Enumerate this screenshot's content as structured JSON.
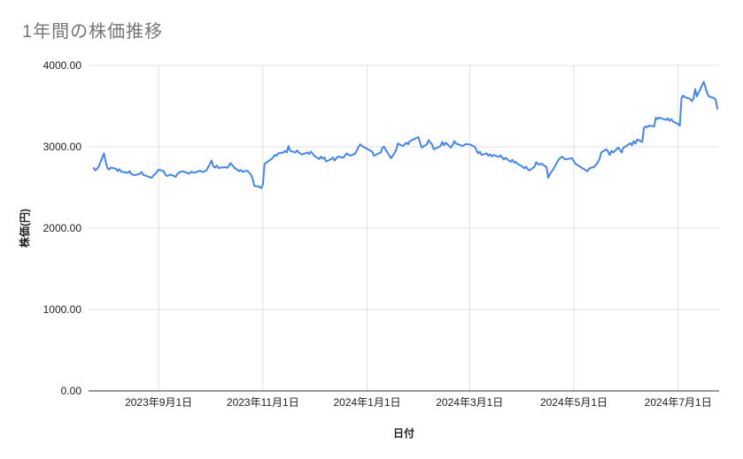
{
  "chart_data": {
    "type": "line",
    "title": "1年間の株価推移",
    "xlabel": "日付",
    "ylabel": "株価(円)",
    "legend": "none",
    "grid": true,
    "ylim": [
      0,
      4000
    ],
    "x_domain": [
      "2023-07-22",
      "2024-07-25"
    ],
    "y_ticks": [
      {
        "value": 0,
        "label": "0.00"
      },
      {
        "value": 1000,
        "label": "1000.00"
      },
      {
        "value": 2000,
        "label": "2000.00"
      },
      {
        "value": 3000,
        "label": "3000.00"
      },
      {
        "value": 4000,
        "label": "4000.00"
      }
    ],
    "x_ticks": [
      {
        "date": "2023-09-01",
        "label": "2023年9月1日"
      },
      {
        "date": "2023-11-01",
        "label": "2023年11月1日"
      },
      {
        "date": "2024-01-01",
        "label": "2024年1月1日"
      },
      {
        "date": "2024-03-01",
        "label": "2024年3月1日"
      },
      {
        "date": "2024-05-01",
        "label": "2024年5月1日"
      },
      {
        "date": "2024-07-01",
        "label": "2024年7月1日"
      }
    ],
    "colors": {
      "line": "#4285f4",
      "grid": "#e0e0e0",
      "axis_line": "#333333",
      "tick_text": "#202020",
      "title_text": "#757575"
    },
    "series": [
      {
        "name": "株価(円)",
        "points": [
          [
            "2023-07-25",
            2740
          ],
          [
            "2023-07-26",
            2710
          ],
          [
            "2023-07-27",
            2730
          ],
          [
            "2023-07-28",
            2760
          ],
          [
            "2023-07-31",
            2920
          ],
          [
            "2023-08-01",
            2820
          ],
          [
            "2023-08-02",
            2740
          ],
          [
            "2023-08-03",
            2720
          ],
          [
            "2023-08-04",
            2745
          ],
          [
            "2023-08-07",
            2730
          ],
          [
            "2023-08-08",
            2700
          ],
          [
            "2023-08-09",
            2725
          ],
          [
            "2023-08-10",
            2695
          ],
          [
            "2023-08-14",
            2680
          ],
          [
            "2023-08-15",
            2700
          ],
          [
            "2023-08-16",
            2665
          ],
          [
            "2023-08-18",
            2650
          ],
          [
            "2023-08-21",
            2670
          ],
          [
            "2023-08-22",
            2690
          ],
          [
            "2023-08-23",
            2655
          ],
          [
            "2023-08-25",
            2640
          ],
          [
            "2023-08-28",
            2620
          ],
          [
            "2023-08-29",
            2650
          ],
          [
            "2023-08-30",
            2665
          ],
          [
            "2023-09-01",
            2720
          ],
          [
            "2023-09-04",
            2700
          ],
          [
            "2023-09-05",
            2655
          ],
          [
            "2023-09-06",
            2640
          ],
          [
            "2023-09-08",
            2660
          ],
          [
            "2023-09-11",
            2630
          ],
          [
            "2023-09-12",
            2665
          ],
          [
            "2023-09-13",
            2685
          ],
          [
            "2023-09-15",
            2700
          ],
          [
            "2023-09-19",
            2670
          ],
          [
            "2023-09-20",
            2695
          ],
          [
            "2023-09-22",
            2680
          ],
          [
            "2023-09-25",
            2705
          ],
          [
            "2023-09-27",
            2690
          ],
          [
            "2023-09-29",
            2710
          ],
          [
            "2023-10-02",
            2830
          ],
          [
            "2023-10-03",
            2760
          ],
          [
            "2023-10-04",
            2745
          ],
          [
            "2023-10-05",
            2770
          ],
          [
            "2023-10-06",
            2740
          ],
          [
            "2023-10-10",
            2750
          ],
          [
            "2023-10-11",
            2740
          ],
          [
            "2023-10-12",
            2760
          ],
          [
            "2023-10-13",
            2800
          ],
          [
            "2023-10-16",
            2730
          ],
          [
            "2023-10-17",
            2720
          ],
          [
            "2023-10-18",
            2700
          ],
          [
            "2023-10-19",
            2715
          ],
          [
            "2023-10-20",
            2695
          ],
          [
            "2023-10-23",
            2705
          ],
          [
            "2023-10-24",
            2680
          ],
          [
            "2023-10-25",
            2660
          ],
          [
            "2023-10-26",
            2610
          ],
          [
            "2023-10-27",
            2520
          ],
          [
            "2023-10-30",
            2510
          ],
          [
            "2023-10-31",
            2490
          ],
          [
            "2023-11-01",
            2530
          ],
          [
            "2023-11-02",
            2790
          ],
          [
            "2023-11-06",
            2850
          ],
          [
            "2023-11-07",
            2870
          ],
          [
            "2023-11-08",
            2900
          ],
          [
            "2023-11-09",
            2890
          ],
          [
            "2023-11-10",
            2920
          ],
          [
            "2023-11-13",
            2930
          ],
          [
            "2023-11-14",
            2950
          ],
          [
            "2023-11-15",
            2930
          ],
          [
            "2023-11-16",
            3010
          ],
          [
            "2023-11-17",
            2950
          ],
          [
            "2023-11-20",
            2930
          ],
          [
            "2023-11-21",
            2955
          ],
          [
            "2023-11-22",
            2930
          ],
          [
            "2023-11-24",
            2905
          ],
          [
            "2023-11-27",
            2930
          ],
          [
            "2023-11-28",
            2910
          ],
          [
            "2023-11-29",
            2940
          ],
          [
            "2023-11-30",
            2920
          ],
          [
            "2023-12-01",
            2890
          ],
          [
            "2023-12-04",
            2850
          ],
          [
            "2023-12-05",
            2880
          ],
          [
            "2023-12-06",
            2855
          ],
          [
            "2023-12-07",
            2870
          ],
          [
            "2023-12-08",
            2820
          ],
          [
            "2023-12-11",
            2850
          ],
          [
            "2023-12-12",
            2870
          ],
          [
            "2023-12-13",
            2830
          ],
          [
            "2023-12-14",
            2860
          ],
          [
            "2023-12-15",
            2880
          ],
          [
            "2023-12-18",
            2865
          ],
          [
            "2023-12-19",
            2890
          ],
          [
            "2023-12-20",
            2920
          ],
          [
            "2023-12-22",
            2890
          ],
          [
            "2023-12-25",
            2915
          ],
          [
            "2023-12-26",
            2955
          ],
          [
            "2023-12-27",
            3000
          ],
          [
            "2023-12-28",
            3030
          ],
          [
            "2023-12-29",
            3010
          ],
          [
            "2024-01-04",
            2940
          ],
          [
            "2024-01-05",
            2890
          ],
          [
            "2024-01-09",
            2930
          ],
          [
            "2024-01-10",
            2990
          ],
          [
            "2024-01-11",
            3000
          ],
          [
            "2024-01-12",
            2960
          ],
          [
            "2024-01-15",
            2860
          ],
          [
            "2024-01-16",
            2890
          ],
          [
            "2024-01-18",
            2960
          ],
          [
            "2024-01-19",
            3040
          ],
          [
            "2024-01-22",
            3010
          ],
          [
            "2024-01-24",
            3050
          ],
          [
            "2024-01-25",
            3030
          ],
          [
            "2024-01-26",
            3070
          ],
          [
            "2024-01-29",
            3100
          ],
          [
            "2024-01-31",
            3120
          ],
          [
            "2024-02-01",
            3050
          ],
          [
            "2024-02-02",
            2990
          ],
          [
            "2024-02-05",
            3030
          ],
          [
            "2024-02-06",
            3080
          ],
          [
            "2024-02-08",
            3030
          ],
          [
            "2024-02-09",
            2970
          ],
          [
            "2024-02-13",
            3010
          ],
          [
            "2024-02-14",
            3060
          ],
          [
            "2024-02-15",
            3020
          ],
          [
            "2024-02-16",
            3050
          ],
          [
            "2024-02-19",
            2990
          ],
          [
            "2024-02-20",
            3020
          ],
          [
            "2024-02-21",
            3070
          ],
          [
            "2024-02-22",
            3040
          ],
          [
            "2024-02-26",
            3010
          ],
          [
            "2024-02-27",
            3025
          ],
          [
            "2024-02-28",
            3035
          ],
          [
            "2024-02-29",
            3030
          ],
          [
            "2024-03-01",
            3030
          ],
          [
            "2024-03-04",
            3000
          ],
          [
            "2024-03-05",
            2960
          ],
          [
            "2024-03-06",
            2920
          ],
          [
            "2024-03-07",
            2940
          ],
          [
            "2024-03-08",
            2900
          ],
          [
            "2024-03-11",
            2920
          ],
          [
            "2024-03-12",
            2890
          ],
          [
            "2024-03-13",
            2910
          ],
          [
            "2024-03-14",
            2880
          ],
          [
            "2024-03-15",
            2900
          ],
          [
            "2024-03-18",
            2875
          ],
          [
            "2024-03-19",
            2895
          ],
          [
            "2024-03-21",
            2845
          ],
          [
            "2024-03-22",
            2865
          ],
          [
            "2024-03-25",
            2815
          ],
          [
            "2024-03-26",
            2840
          ],
          [
            "2024-03-27",
            2805
          ],
          [
            "2024-03-28",
            2815
          ],
          [
            "2024-03-29",
            2790
          ],
          [
            "2024-04-01",
            2755
          ],
          [
            "2024-04-02",
            2735
          ],
          [
            "2024-04-03",
            2755
          ],
          [
            "2024-04-04",
            2725
          ],
          [
            "2024-04-05",
            2710
          ],
          [
            "2024-04-08",
            2755
          ],
          [
            "2024-04-09",
            2810
          ],
          [
            "2024-04-10",
            2790
          ],
          [
            "2024-04-11",
            2780
          ],
          [
            "2024-04-12",
            2795
          ],
          [
            "2024-04-15",
            2750
          ],
          [
            "2024-04-16",
            2620
          ],
          [
            "2024-04-17",
            2665
          ],
          [
            "2024-04-19",
            2725
          ],
          [
            "2024-04-22",
            2840
          ],
          [
            "2024-04-24",
            2880
          ],
          [
            "2024-04-26",
            2845
          ],
          [
            "2024-04-30",
            2860
          ],
          [
            "2024-05-01",
            2820
          ],
          [
            "2024-05-02",
            2790
          ],
          [
            "2024-05-07",
            2725
          ],
          [
            "2024-05-09",
            2700
          ],
          [
            "2024-05-10",
            2735
          ],
          [
            "2024-05-13",
            2755
          ],
          [
            "2024-05-15",
            2810
          ],
          [
            "2024-05-16",
            2845
          ],
          [
            "2024-05-17",
            2930
          ],
          [
            "2024-05-20",
            2970
          ],
          [
            "2024-05-21",
            2940
          ],
          [
            "2024-05-22",
            2900
          ],
          [
            "2024-05-23",
            2950
          ],
          [
            "2024-05-24",
            2930
          ],
          [
            "2024-05-27",
            2990
          ],
          [
            "2024-05-28",
            2960
          ],
          [
            "2024-05-29",
            2930
          ],
          [
            "2024-05-30",
            2990
          ],
          [
            "2024-05-31",
            3000
          ],
          [
            "2024-06-03",
            3045
          ],
          [
            "2024-06-04",
            3020
          ],
          [
            "2024-06-05",
            3070
          ],
          [
            "2024-06-06",
            3040
          ],
          [
            "2024-06-07",
            3090
          ],
          [
            "2024-06-10",
            3060
          ],
          [
            "2024-06-11",
            3230
          ],
          [
            "2024-06-12",
            3250
          ],
          [
            "2024-06-13",
            3240
          ],
          [
            "2024-06-14",
            3260
          ],
          [
            "2024-06-17",
            3250
          ],
          [
            "2024-06-18",
            3360
          ],
          [
            "2024-06-19",
            3340
          ],
          [
            "2024-06-20",
            3360
          ],
          [
            "2024-06-21",
            3350
          ],
          [
            "2024-06-24",
            3330
          ],
          [
            "2024-06-25",
            3350
          ],
          [
            "2024-06-26",
            3320
          ],
          [
            "2024-06-27",
            3340
          ],
          [
            "2024-06-28",
            3310
          ],
          [
            "2024-07-01",
            3280
          ],
          [
            "2024-07-02",
            3260
          ],
          [
            "2024-07-03",
            3600
          ],
          [
            "2024-07-04",
            3630
          ],
          [
            "2024-07-05",
            3610
          ],
          [
            "2024-07-08",
            3590
          ],
          [
            "2024-07-09",
            3560
          ],
          [
            "2024-07-10",
            3590
          ],
          [
            "2024-07-11",
            3710
          ],
          [
            "2024-07-12",
            3620
          ],
          [
            "2024-07-16",
            3800
          ],
          [
            "2024-07-17",
            3730
          ],
          [
            "2024-07-18",
            3660
          ],
          [
            "2024-07-19",
            3620
          ],
          [
            "2024-07-22",
            3600
          ],
          [
            "2024-07-23",
            3580
          ],
          [
            "2024-07-24",
            3470
          ]
        ]
      }
    ]
  }
}
